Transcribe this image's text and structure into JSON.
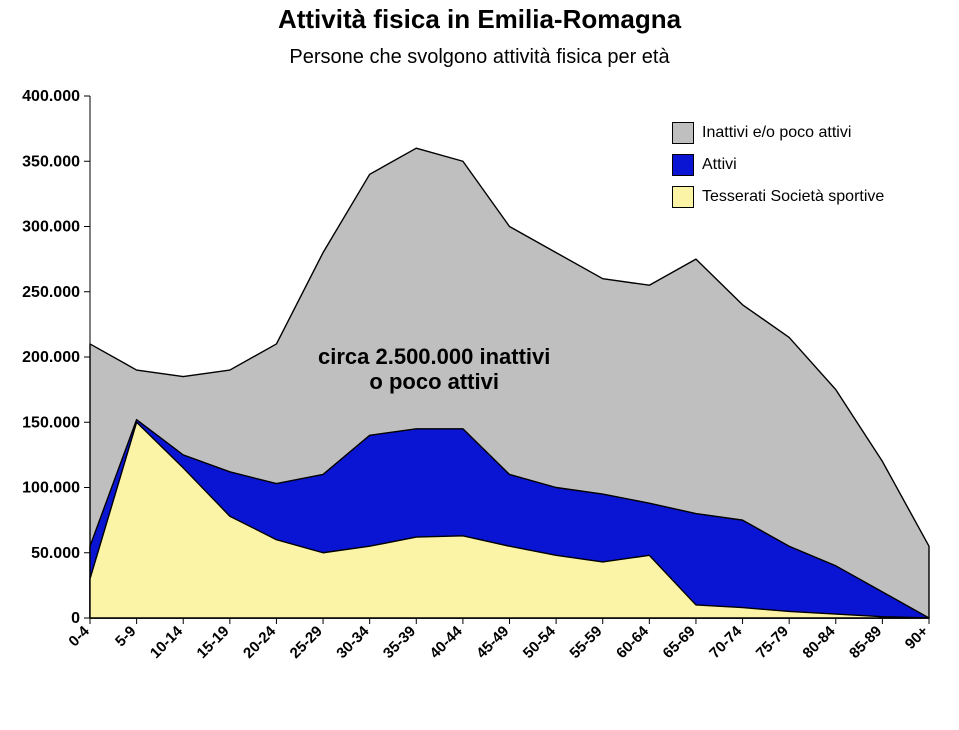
{
  "title": "Attività fisica in Emilia-Romagna",
  "subtitle": "Persone che svolgono attività fisica per età",
  "chart": {
    "type": "area",
    "background_color": "#ffffff",
    "stroke_color": "#000000",
    "title_fontsize": 26,
    "subtitle_fontsize": 20,
    "axis_label_fontsize": 16,
    "y_axis": {
      "min": 0,
      "max": 400000,
      "tick_step": 50000,
      "ticks": [
        0,
        50000,
        100000,
        150000,
        200000,
        250000,
        300000,
        350000,
        400000
      ],
      "tick_labels": [
        "0",
        "50.000",
        "100.000",
        "150.000",
        "200.000",
        "250.000",
        "300.000",
        "350.000",
        "400.000"
      ]
    },
    "x_axis": {
      "categories": [
        "0-4",
        "5-9",
        "10-14",
        "15-19",
        "20-24",
        "25-29",
        "30-34",
        "35-39",
        "40-44",
        "45-49",
        "50-54",
        "55-59",
        "60-64",
        "65-69",
        "70-74",
        "75-79",
        "80-84",
        "85-89",
        "90+"
      ],
      "rotation": -45
    },
    "series": [
      {
        "name": "Inattivi e/o poco attivi",
        "label": "Inattivi e/o poco attivi",
        "fill_color": "#bfbfbf",
        "values": [
          210000,
          190000,
          185000,
          190000,
          210000,
          280000,
          340000,
          360000,
          350000,
          300000,
          280000,
          260000,
          255000,
          275000,
          240000,
          215000,
          175000,
          120000,
          55000
        ]
      },
      {
        "name": "Attivi",
        "label": "Attivi",
        "fill_color": "#0a14d3",
        "values": [
          55000,
          152000,
          125000,
          112000,
          103000,
          110000,
          140000,
          145000,
          145000,
          110000,
          100000,
          95000,
          88000,
          80000,
          75000,
          55000,
          40000,
          20000,
          0
        ]
      },
      {
        "name": "Tesserati Società sportive",
        "label": "Tesserati Società sportive",
        "fill_color": "#fbf4a7",
        "values": [
          30000,
          150000,
          115000,
          78000,
          60000,
          50000,
          55000,
          62000,
          63000,
          55000,
          48000,
          43000,
          48000,
          10000,
          8000,
          5000,
          3000,
          1000,
          0
        ]
      }
    ],
    "legend": {
      "position": "right",
      "items": [
        {
          "label": "Inattivi e/o poco attivi",
          "color": "#bfbfbf"
        },
        {
          "label": "Attivi",
          "color": "#0a14d3"
        },
        {
          "label": "Tesserati Società sportive",
          "color": "#fbf4a7"
        }
      ]
    },
    "annotation": {
      "line1": "circa 2.500.000 inattivi",
      "line2": "o poco attivi"
    }
  }
}
